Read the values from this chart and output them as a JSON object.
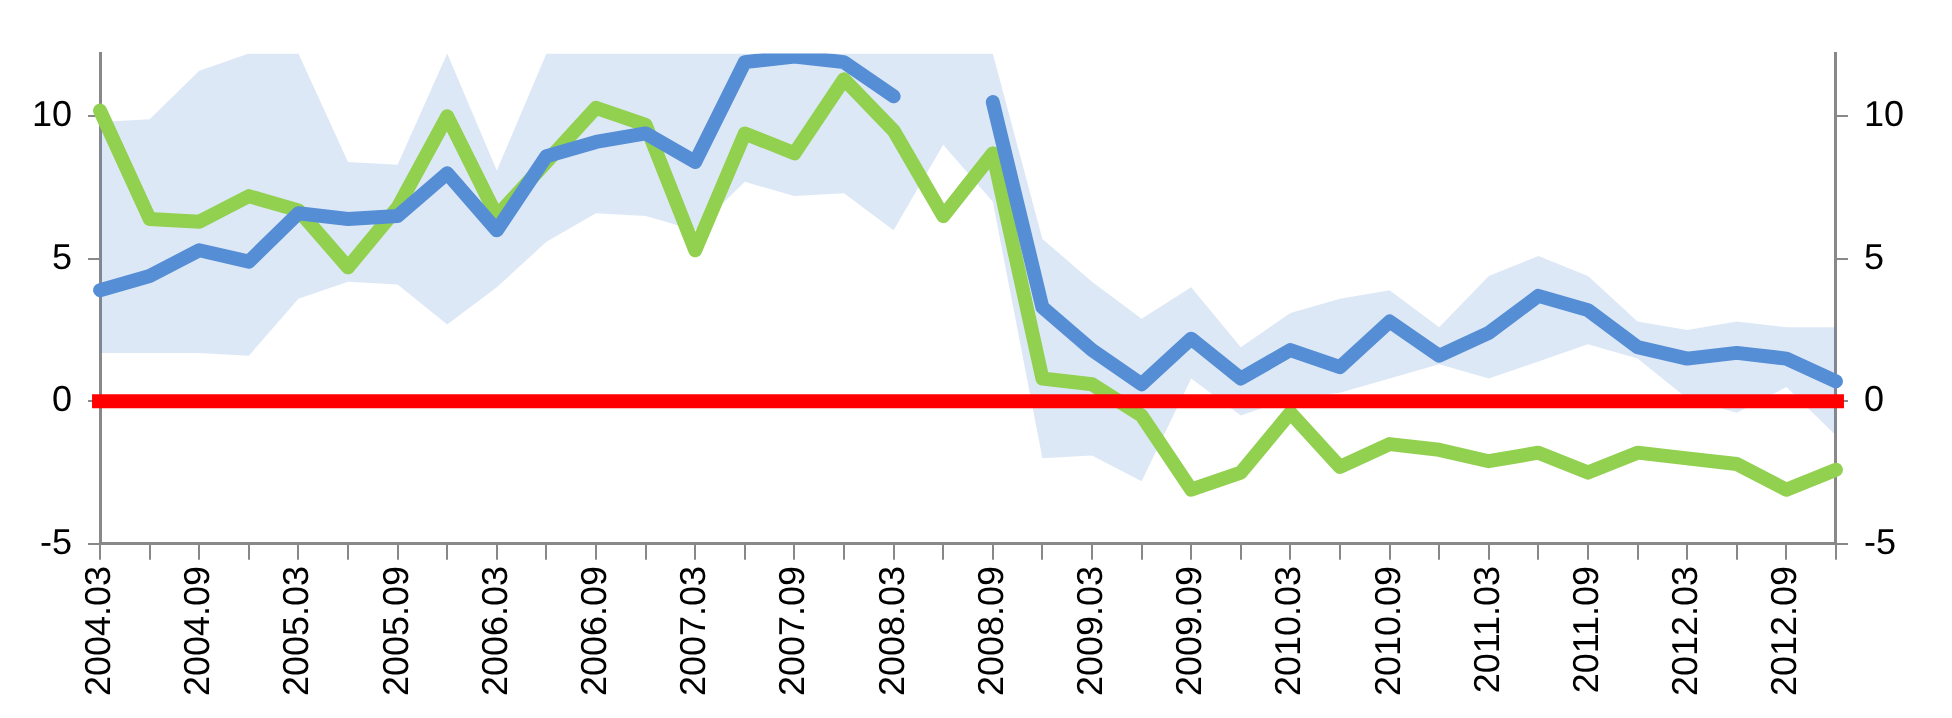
{
  "chart_data": {
    "type": "line",
    "categories": [
      "2004.03",
      null,
      "2004.09",
      null,
      "2005.03",
      null,
      "2005.09",
      null,
      "2006.03",
      null,
      "2006.09",
      null,
      "2007.03",
      null,
      "2007.09",
      null,
      "2008.03",
      null,
      "2008.09",
      null,
      "2009.03",
      null,
      "2009.09",
      null,
      "2010.03",
      null,
      "2010.09",
      null,
      "2011.03",
      null,
      "2011.09",
      null,
      "2012.03",
      null,
      "2012.09",
      null
    ],
    "series": [
      {
        "color": "#558ed5",
        "values": [
          3.9,
          4.4,
          5.3,
          4.9,
          6.6,
          6.4,
          6.5,
          8.0,
          6.0,
          8.6,
          9.1,
          9.4,
          8.4,
          11.9,
          12.1,
          11.9,
          10.7,
          null,
          10.5,
          3.3,
          1.8,
          0.6,
          2.2,
          0.8,
          1.8,
          1.2,
          2.8,
          1.6,
          2.4,
          3.7,
          3.2,
          1.9,
          1.5,
          1.7,
          1.5,
          0.7
        ],
        "lower": [
          1.7,
          1.7,
          1.7,
          1.6,
          3.6,
          4.2,
          4.1,
          2.7,
          4.0,
          5.6,
          6.6,
          6.5,
          6.0,
          7.7,
          7.2,
          7.3,
          6.0,
          9.0,
          7.0,
          -2.0,
          -1.9,
          -2.8,
          0.8,
          -0.5,
          0.1,
          0.3,
          0.8,
          1.3,
          0.8,
          1.4,
          2.0,
          1.5,
          0.1,
          -0.4,
          0.5,
          -1.2
        ],
        "upper": [
          9.8,
          9.9,
          11.6,
          12.2,
          12.2,
          8.4,
          8.3,
          12.2,
          8.1,
          12.2,
          12.2,
          12.2,
          12.2,
          12.2,
          12.2,
          12.2,
          12.2,
          12.2,
          12.2,
          5.7,
          4.2,
          2.9,
          4.0,
          1.9,
          3.1,
          3.6,
          3.9,
          2.6,
          4.4,
          5.1,
          4.4,
          2.8,
          2.5,
          2.8,
          2.6,
          2.6
        ]
      },
      {
        "color": "#92d050",
        "values": [
          10.2,
          6.4,
          6.3,
          7.2,
          6.7,
          4.7,
          6.8,
          10.0,
          6.5,
          8.4,
          10.3,
          9.7,
          5.3,
          9.4,
          8.7,
          11.3,
          9.5,
          6.5,
          8.7,
          0.8,
          0.6,
          -0.5,
          -3.1,
          -2.5,
          -0.4,
          -2.3,
          -1.5,
          -1.7,
          -2.1,
          -1.8,
          -2.5,
          -1.8,
          -2.0,
          -2.2,
          -3.1,
          -2.4
        ]
      }
    ],
    "ylim": [
      -5,
      12.2
    ],
    "yticks": [
      -5,
      0,
      5,
      10
    ],
    "y2lim": [
      -5,
      12.2
    ],
    "y2ticks": [
      -5,
      0,
      5,
      10
    ],
    "ref_lines": [
      {
        "axis": "y",
        "value": 0,
        "color": "#ff0000"
      }
    ],
    "grid": false,
    "legend": false,
    "marker": "none",
    "line_style": "solid"
  }
}
